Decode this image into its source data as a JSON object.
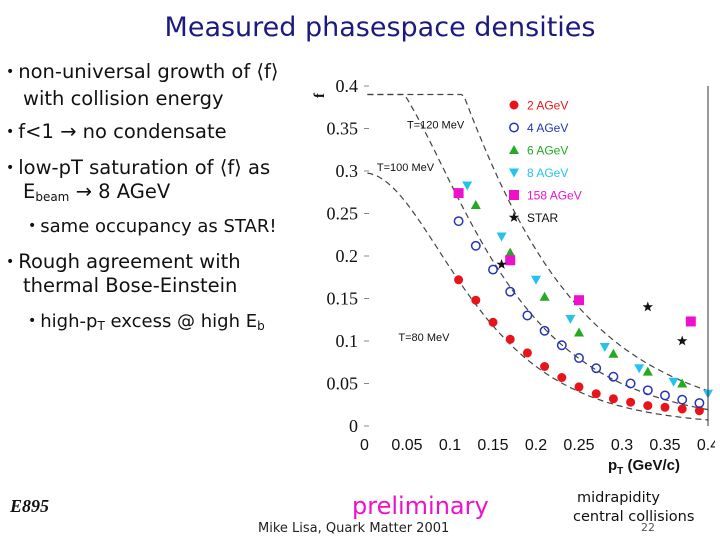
{
  "slide": {
    "title": "Measured phasespace densities",
    "bullets": [
      {
        "text": "non-universal growth of ⟨f⟩",
        "cont": "with collision energy"
      },
      {
        "text": "f<1 → no condensate"
      },
      {
        "text": "low-pT saturation of ⟨f⟩ as",
        "cont_pre": "E",
        "cont_sub": "beam",
        "cont_post": " → 8 AGeV"
      },
      {
        "text": "same occupancy as STAR!"
      },
      {
        "text": "Rough agreement with",
        "cont": "thermal Bose-Einstein"
      },
      {
        "text_pre": "high-p",
        "text_sub": "T",
        "text_post": " excess @ high E",
        "text_sub2": "b"
      }
    ],
    "footer": {
      "left": "E895",
      "center": "preliminary",
      "credit": "Mike Lisa, Quark Matter 2001",
      "right_line1": "midrapidity",
      "right_line2": "central collisions",
      "page": "22"
    }
  },
  "chart_data": {
    "type": "scatter",
    "ylabel": "f",
    "xlabel": "p",
    "xlabel_sub": "T",
    "xlabel_units": " (GeV/c)",
    "xlim": [
      0,
      0.4
    ],
    "ylim": [
      0,
      0.4
    ],
    "x_ticks": [
      "0",
      "0.05",
      "0.1",
      "0.15",
      "0.2",
      "0.25",
      "0.3",
      "0.35",
      "0.4"
    ],
    "y_ticks": [
      "0",
      "0.05",
      "0.1",
      "0.15",
      "0.2",
      "0.25",
      "0.3",
      "0.35",
      "0.4"
    ],
    "curve_labels": [
      {
        "text": "T=120 MeV",
        "x": 0.05,
        "y": 0.35
      },
      {
        "text": "T=100 MeV",
        "x": 0.015,
        "y": 0.3
      },
      {
        "text": "T=80 MeV",
        "x": 0.04,
        "y": 0.1
      }
    ],
    "curves": [
      {
        "T": 0.12,
        "A": 0.43
      },
      {
        "T": 0.1,
        "A": 0.41
      },
      {
        "T": 0.08,
        "A": 0.44
      }
    ],
    "series": [
      {
        "name": "2 AGeV",
        "marker": "circle-filled",
        "color": "#e8141a",
        "points": [
          [
            0.11,
            0.172
          ],
          [
            0.13,
            0.148
          ],
          [
            0.15,
            0.122
          ],
          [
            0.17,
            0.102
          ],
          [
            0.19,
            0.086
          ],
          [
            0.21,
            0.07
          ],
          [
            0.23,
            0.057
          ],
          [
            0.25,
            0.046
          ],
          [
            0.27,
            0.038
          ],
          [
            0.29,
            0.032
          ],
          [
            0.31,
            0.028
          ],
          [
            0.33,
            0.024
          ],
          [
            0.35,
            0.022
          ],
          [
            0.37,
            0.02
          ],
          [
            0.39,
            0.018
          ]
        ]
      },
      {
        "name": "4 AGeV",
        "marker": "circle-open",
        "color": "#2436b5",
        "points": [
          [
            0.11,
            0.241
          ],
          [
            0.13,
            0.212
          ],
          [
            0.15,
            0.184
          ],
          [
            0.17,
            0.158
          ],
          [
            0.19,
            0.13
          ],
          [
            0.21,
            0.112
          ],
          [
            0.23,
            0.095
          ],
          [
            0.25,
            0.08
          ],
          [
            0.27,
            0.068
          ],
          [
            0.29,
            0.058
          ],
          [
            0.31,
            0.05
          ],
          [
            0.33,
            0.042
          ],
          [
            0.35,
            0.036
          ],
          [
            0.37,
            0.031
          ],
          [
            0.39,
            0.027
          ]
        ]
      },
      {
        "name": "6 AGeV",
        "marker": "triangle-up",
        "color": "#22aa22",
        "points": [
          [
            0.13,
            0.26
          ],
          [
            0.17,
            0.204
          ],
          [
            0.21,
            0.152
          ],
          [
            0.25,
            0.11
          ],
          [
            0.29,
            0.085
          ],
          [
            0.33,
            0.064
          ],
          [
            0.37,
            0.05
          ]
        ]
      },
      {
        "name": "8 AGeV",
        "marker": "triangle-down",
        "color": "#25c2ee",
        "points": [
          [
            0.12,
            0.283
          ],
          [
            0.16,
            0.223
          ],
          [
            0.2,
            0.172
          ],
          [
            0.24,
            0.126
          ],
          [
            0.28,
            0.093
          ],
          [
            0.32,
            0.068
          ],
          [
            0.36,
            0.052
          ],
          [
            0.4,
            0.038
          ]
        ]
      },
      {
        "name": "158 AGeV",
        "marker": "square",
        "color": "#ee11cc",
        "points": [
          [
            0.11,
            0.274
          ],
          [
            0.17,
            0.195
          ],
          [
            0.25,
            0.148
          ],
          [
            0.38,
            0.123
          ]
        ]
      },
      {
        "name": "STAR",
        "marker": "star",
        "color": "#111111",
        "points": [
          [
            0.16,
            0.19
          ],
          [
            0.33,
            0.14
          ],
          [
            0.37,
            0.1
          ]
        ]
      }
    ],
    "legend_position": "top-right",
    "grid": false
  }
}
